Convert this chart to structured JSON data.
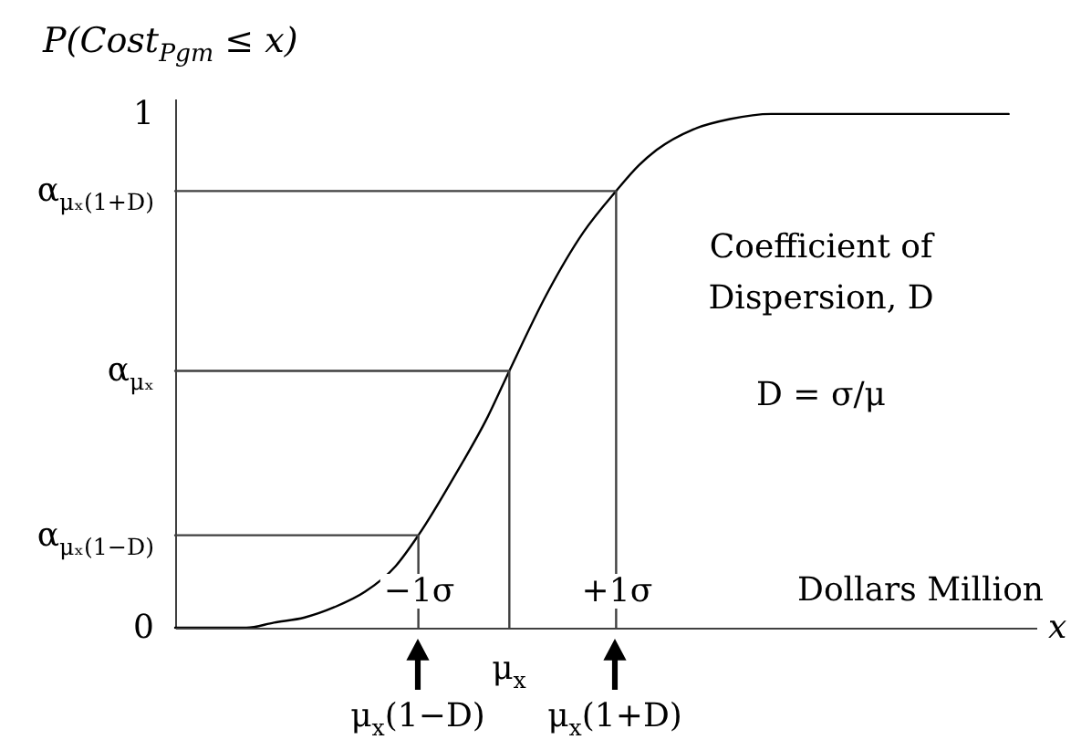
{
  "chart_data": {
    "type": "line",
    "xlabel": "x",
    "ylabel": "P(Cost$_{Pgm}$ ≤ x)",
    "xlim": [
      -3.46,
      5.25
    ],
    "ylim": [
      0,
      1.03
    ],
    "xticks": [
      {
        "value": -1,
        "label": "−1σ"
      },
      {
        "value": 1,
        "label": "+1σ"
      }
    ],
    "yticks": [
      0,
      {
        "value": 0.18,
        "label": "α$_{μₓ(1−D)}$"
      },
      {
        "value": 0.5,
        "label": "α$_{μₓ}$"
      },
      {
        "value": 0.85,
        "label": "α$_{μₓ(1+D)}$"
      },
      1
    ],
    "series": [
      {
        "color": "#000000",
        "x": [
          -3.46,
          -2.74,
          -2.46,
          -2.15,
          -1.85,
          -1.54,
          -1.23,
          -1,
          -0.62,
          -0.3,
          -0.08,
          0.3,
          0.67,
          1,
          1.23,
          1.41,
          1.78,
          2.15,
          2.57,
          4.97
        ],
        "values": [
          0,
          0,
          0.01,
          0.02,
          0.04,
          0.07,
          0.12,
          0.18,
          0.3,
          0.41,
          0.5,
          0.65,
          0.77,
          0.85,
          0.9,
          0.93,
          0.97,
          0.99,
          1,
          1
        ]
      },
      {
        "type": "line",
        "color": "#404040",
        "x": [
          -3.46,
          -1,
          -1
        ],
        "values": [
          0.18,
          0.18,
          0
        ]
      },
      {
        "type": "line",
        "color": "#404040",
        "x": [
          -3.46,
          -0.08,
          -0.08
        ],
        "values": [
          0.5,
          0.5,
          0
        ]
      },
      {
        "type": "line",
        "color": "#404040",
        "x": [
          -3.46,
          1,
          1
        ],
        "values": [
          0.85,
          0.85,
          0
        ]
      }
    ],
    "annotations": [
      "Coefficient of\nDispersion, D",
      "D = σ/μ",
      "Dollars Million",
      "μ$_{x}$(1−D)",
      "μ$_{x}$",
      "μ$_{x}$(1+D)"
    ]
  }
}
